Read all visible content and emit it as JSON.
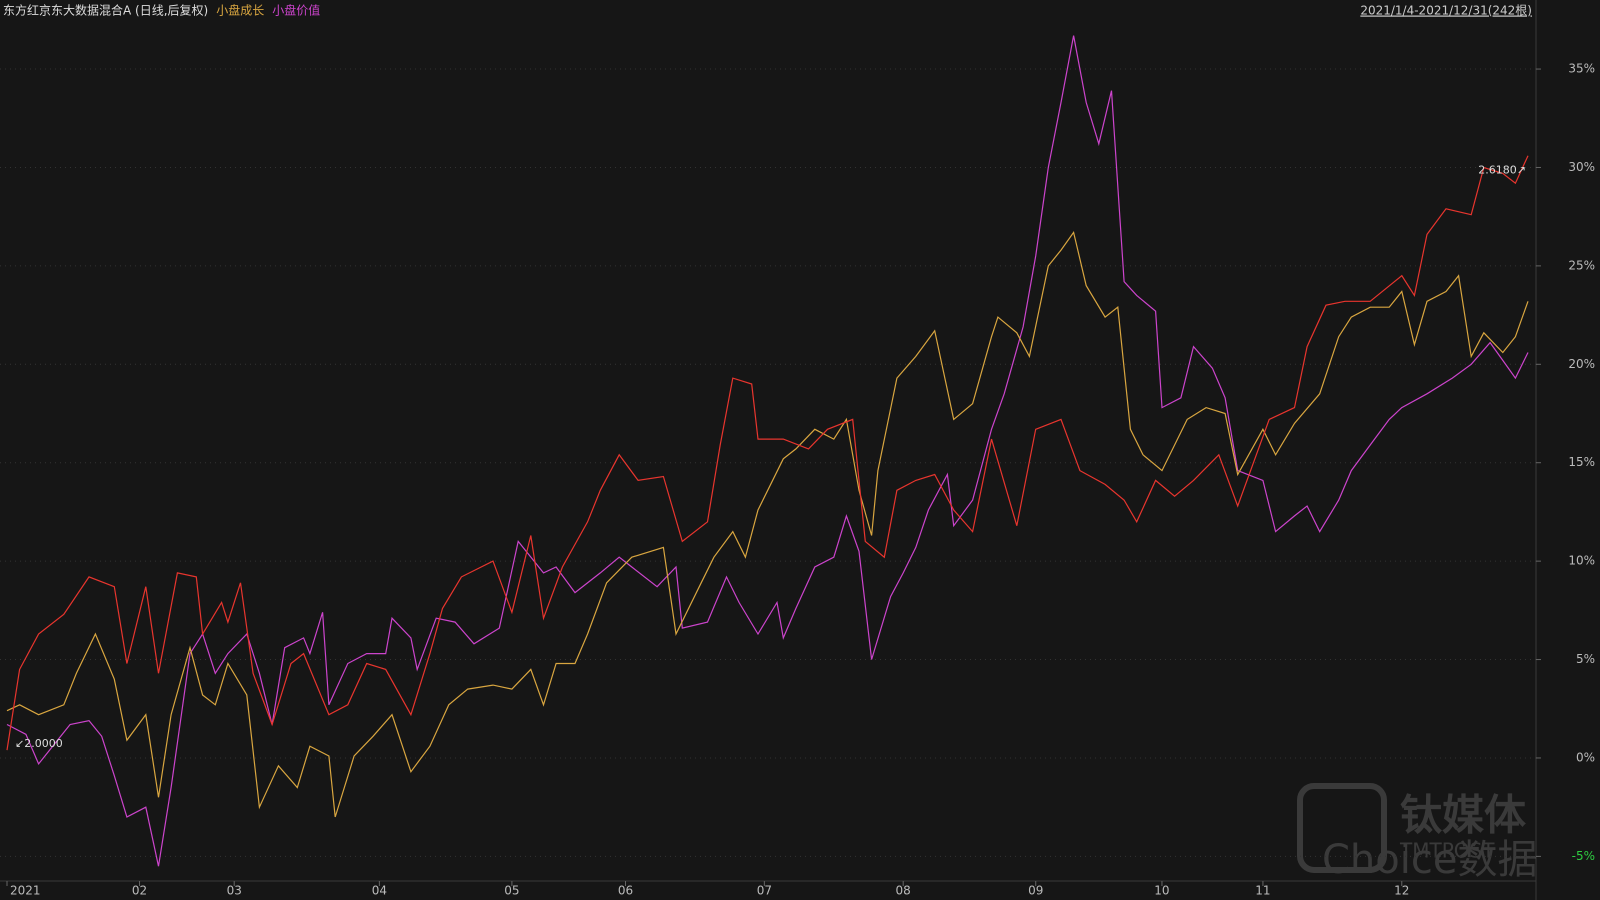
{
  "chart_data": {
    "type": "line",
    "range_label": "2021/1/4-2021/12/31(242根)",
    "start_label": "↙2.0000",
    "end_label": "2.6180↗",
    "watermark": [
      "钛媒体",
      "TMTPOST",
      "Choice数据"
    ],
    "grid": true,
    "xlim": [
      0,
      241
    ],
    "xticks": [
      {
        "value": 0,
        "label": "2021"
      },
      {
        "value": 21,
        "label": "02"
      },
      {
        "value": 36,
        "label": "03"
      },
      {
        "value": 59,
        "label": "04"
      },
      {
        "value": 80,
        "label": "05"
      },
      {
        "value": 98,
        "label": "06"
      },
      {
        "value": 120,
        "label": "07"
      },
      {
        "value": 142,
        "label": "08"
      },
      {
        "value": 163,
        "label": "09"
      },
      {
        "value": 183,
        "label": "10"
      },
      {
        "value": 199,
        "label": "11"
      },
      {
        "value": 221,
        "label": "12"
      }
    ],
    "ylim": [
      -6.2,
      38
    ],
    "yticks": [
      {
        "value": -5,
        "label": "-5%"
      },
      {
        "value": 0,
        "label": "0%"
      },
      {
        "value": 5,
        "label": "5%"
      },
      {
        "value": 10,
        "label": "10%"
      },
      {
        "value": 15,
        "label": "15%"
      },
      {
        "value": 20,
        "label": "20%"
      },
      {
        "value": 25,
        "label": "25%"
      },
      {
        "value": 30,
        "label": "30%"
      },
      {
        "value": 35,
        "label": "35%"
      }
    ],
    "series": [
      {
        "name": "东方红京东大数据混合A (日线,后复权)",
        "color": "#e8352e",
        "x": [
          0,
          2,
          5,
          9,
          13,
          17,
          19,
          22,
          24,
          27,
          30,
          31,
          34,
          35,
          37,
          39,
          42,
          45,
          47,
          51,
          54,
          57,
          60,
          64,
          67,
          69,
          72,
          77,
          80,
          83,
          85,
          88,
          92,
          94,
          97,
          100,
          104,
          107,
          111,
          113,
          115,
          118,
          119,
          123,
          127,
          130,
          134,
          136,
          139,
          141,
          144,
          147,
          150,
          153,
          156,
          160,
          163,
          167,
          170,
          174,
          177,
          179,
          182,
          185,
          188,
          192,
          195,
          200,
          204,
          206,
          209,
          212,
          216,
          221,
          223,
          225,
          228,
          232,
          234,
          237,
          239,
          241
        ],
        "values": [
          0.4,
          4.5,
          6.3,
          7.3,
          9.2,
          8.7,
          4.8,
          8.7,
          4.3,
          9.4,
          9.2,
          6.3,
          7.9,
          6.9,
          8.9,
          4.3,
          1.7,
          4.8,
          5.3,
          2.2,
          2.7,
          4.8,
          4.5,
          2.2,
          5.3,
          7.6,
          9.2,
          10.0,
          7.4,
          11.3,
          7.1,
          9.7,
          12.0,
          13.6,
          15.4,
          14.1,
          14.3,
          11.0,
          12.0,
          15.9,
          19.3,
          19.0,
          16.2,
          16.2,
          15.7,
          16.7,
          17.2,
          11.0,
          10.2,
          13.6,
          14.1,
          14.4,
          12.6,
          11.5,
          16.2,
          11.8,
          16.7,
          17.2,
          14.6,
          13.9,
          13.1,
          12.0,
          14.1,
          13.3,
          14.1,
          15.4,
          12.8,
          17.2,
          17.8,
          20.9,
          23.0,
          23.2,
          23.2,
          24.5,
          23.5,
          26.6,
          27.9,
          27.6,
          30.0,
          29.7,
          29.2,
          30.6
        ]
      },
      {
        "name": "小盘成长",
        "color": "#d9a640",
        "x": [
          0,
          2,
          5,
          9,
          11,
          14,
          17,
          19,
          22,
          24,
          26,
          29,
          31,
          33,
          35,
          38,
          40,
          43,
          46,
          48,
          51,
          52,
          55,
          58,
          61,
          64,
          67,
          70,
          73,
          77,
          80,
          83,
          85,
          87,
          90,
          92,
          95,
          99,
          104,
          106,
          110,
          112,
          115,
          117,
          119,
          123,
          125,
          128,
          131,
          133,
          135,
          137,
          138,
          141,
          144,
          147,
          150,
          153,
          156,
          157,
          160,
          162,
          165,
          167,
          169,
          171,
          174,
          176,
          178,
          180,
          183,
          187,
          190,
          193,
          195,
          199,
          201,
          204,
          208,
          211,
          213,
          216,
          219,
          221,
          223,
          225,
          228,
          230,
          232,
          234,
          237,
          239,
          241
        ],
        "values": [
          2.4,
          2.7,
          2.2,
          2.7,
          4.3,
          6.3,
          4.0,
          0.9,
          2.2,
          -2.0,
          2.2,
          5.6,
          3.2,
          2.7,
          4.8,
          3.2,
          -2.5,
          -0.4,
          -1.5,
          0.6,
          0.1,
          -3.0,
          0.1,
          1.1,
          2.2,
          -0.7,
          0.6,
          2.7,
          3.5,
          3.7,
          3.5,
          4.5,
          2.7,
          4.8,
          4.8,
          6.3,
          8.9,
          10.2,
          10.7,
          6.3,
          8.9,
          10.2,
          11.5,
          10.2,
          12.6,
          15.2,
          15.7,
          16.7,
          16.2,
          17.2,
          13.6,
          11.3,
          14.6,
          19.3,
          20.4,
          21.7,
          17.2,
          18.0,
          21.4,
          22.4,
          21.6,
          20.4,
          25.0,
          25.8,
          26.7,
          24.0,
          22.4,
          22.9,
          16.7,
          15.4,
          14.6,
          17.2,
          17.8,
          17.5,
          14.4,
          16.7,
          15.4,
          17.0,
          18.5,
          21.4,
          22.4,
          22.9,
          22.9,
          23.7,
          21.0,
          23.2,
          23.7,
          24.5,
          20.4,
          21.6,
          20.6,
          21.4,
          23.2
        ]
      },
      {
        "name": "小盘价值",
        "color": "#cc44cc",
        "x": [
          0,
          3,
          5,
          8,
          10,
          13,
          15,
          17,
          19,
          22,
          24,
          26,
          29,
          31,
          33,
          35,
          38,
          40,
          42,
          44,
          47,
          48,
          50,
          51,
          54,
          57,
          60,
          61,
          64,
          65,
          68,
          71,
          74,
          78,
          81,
          85,
          87,
          90,
          94,
          97,
          99,
          103,
          106,
          107,
          111,
          114,
          116,
          119,
          122,
          123,
          125,
          128,
          131,
          133,
          135,
          137,
          140,
          142,
          144,
          146,
          149,
          150,
          153,
          156,
          158,
          161,
          163,
          165,
          167,
          169,
          171,
          173,
          175,
          177,
          179,
          182,
          183,
          186,
          188,
          191,
          193,
          195,
          199,
          201,
          204,
          206,
          208,
          211,
          213,
          216,
          219,
          221,
          225,
          229,
          232,
          235,
          237,
          239,
          241
        ],
        "values": [
          1.7,
          1.2,
          -0.3,
          0.9,
          1.7,
          1.9,
          1.1,
          -0.9,
          -3.0,
          -2.5,
          -5.5,
          -1.5,
          5.3,
          6.3,
          4.3,
          5.3,
          6.3,
          4.3,
          1.7,
          5.6,
          6.1,
          5.3,
          7.4,
          2.7,
          4.8,
          5.3,
          5.3,
          7.1,
          6.1,
          4.5,
          7.1,
          6.9,
          5.8,
          6.6,
          11.0,
          9.4,
          9.7,
          8.4,
          9.4,
          10.2,
          9.7,
          8.7,
          9.7,
          6.6,
          6.9,
          9.2,
          7.9,
          6.3,
          7.9,
          6.1,
          7.6,
          9.7,
          10.2,
          12.3,
          10.5,
          5.0,
          8.2,
          9.4,
          10.7,
          12.6,
          14.4,
          11.8,
          13.1,
          16.7,
          18.5,
          21.9,
          25.5,
          30.0,
          33.3,
          36.7,
          33.3,
          31.2,
          33.9,
          24.2,
          23.5,
          22.7,
          17.8,
          18.3,
          20.9,
          19.8,
          18.3,
          14.6,
          14.1,
          11.5,
          12.3,
          12.8,
          11.5,
          13.1,
          14.6,
          15.9,
          17.2,
          17.8,
          18.5,
          19.3,
          20.0,
          21.1,
          20.2,
          19.3,
          20.6
        ]
      }
    ]
  }
}
